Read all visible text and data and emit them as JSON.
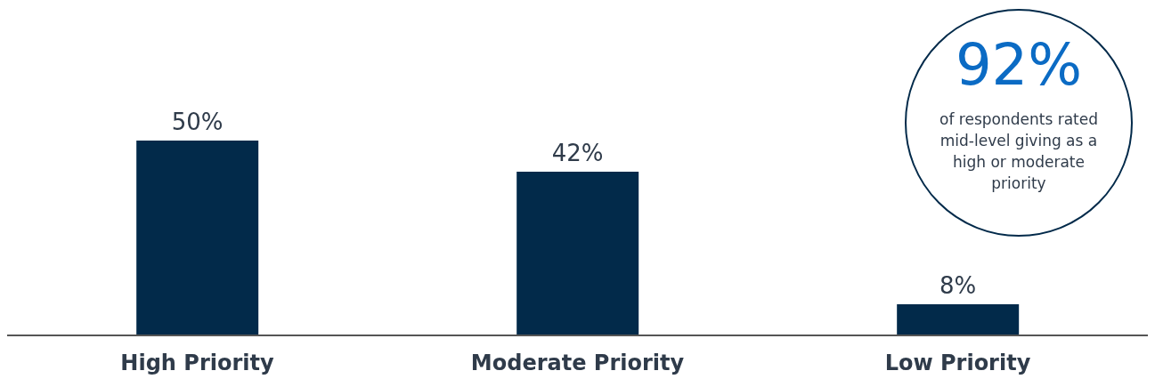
{
  "chart_data": {
    "type": "bar",
    "categories": [
      "High Priority",
      "Moderate Priority",
      "Low Priority"
    ],
    "values": [
      50,
      42,
      8
    ],
    "value_labels": [
      "50%",
      "42%",
      "8%"
    ],
    "color": "#022a4a",
    "annotations": [
      "92%",
      "of respondents rated mid-level giving as a high or moderate priority"
    ]
  }
}
